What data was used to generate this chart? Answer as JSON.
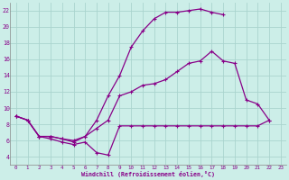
{
  "xlabel": "Windchill (Refroidissement éolien,°C)",
  "background_color": "#cceee8",
  "grid_color": "#aad4ce",
  "line_color": "#880088",
  "xlim": [
    -0.5,
    23.5
  ],
  "ylim": [
    3,
    23
  ],
  "yticks": [
    4,
    6,
    8,
    10,
    12,
    14,
    16,
    18,
    20,
    22
  ],
  "xticks": [
    0,
    1,
    2,
    3,
    4,
    5,
    6,
    7,
    8,
    9,
    10,
    11,
    12,
    13,
    14,
    15,
    16,
    17,
    18,
    19,
    20,
    21,
    22,
    23
  ],
  "curve1_x": [
    0,
    1,
    2,
    3,
    4,
    5,
    6,
    7,
    8,
    9,
    10,
    11,
    12,
    13,
    14,
    15,
    16,
    17,
    18
  ],
  "curve1_y": [
    9.0,
    8.5,
    6.5,
    6.5,
    6.2,
    6.0,
    6.5,
    8.5,
    11.5,
    14.0,
    17.5,
    19.5,
    21.0,
    21.8,
    21.8,
    22.0,
    22.2,
    21.8,
    21.5
  ],
  "curve2_x": [
    0,
    1,
    2,
    3,
    4,
    5,
    6,
    7,
    8,
    9,
    10,
    11,
    12,
    13,
    14,
    15,
    16,
    17,
    18,
    19,
    20,
    21,
    22
  ],
  "curve2_y": [
    9.0,
    8.5,
    6.5,
    6.5,
    6.2,
    5.8,
    6.5,
    7.5,
    8.5,
    11.5,
    12.0,
    12.8,
    13.0,
    13.5,
    14.5,
    15.5,
    15.8,
    17.0,
    15.8,
    15.5,
    11.0,
    10.5,
    8.5
  ],
  "curve3_x": [
    0,
    1,
    2,
    3,
    4,
    5,
    6,
    7,
    8,
    9,
    10,
    11,
    12,
    13,
    14,
    15,
    16,
    17,
    18,
    19,
    20,
    21,
    22
  ],
  "curve3_y": [
    9.0,
    8.5,
    6.5,
    6.2,
    5.8,
    5.5,
    5.8,
    4.5,
    4.2,
    7.8,
    7.8,
    7.8,
    7.8,
    7.8,
    7.8,
    7.8,
    7.8,
    7.8,
    7.8,
    7.8,
    7.8,
    7.8,
    8.5
  ]
}
